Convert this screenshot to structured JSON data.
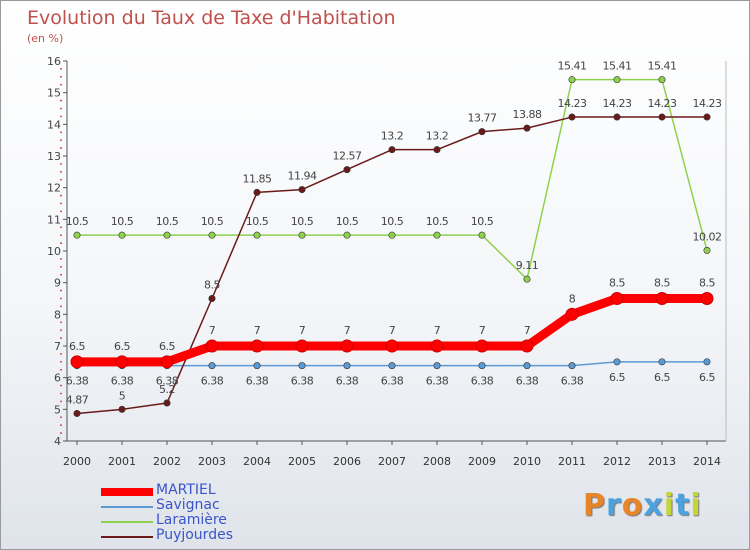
{
  "header": {
    "title": "Evolution du Taux de Taxe d'Habitation",
    "subtitle": "(en %)"
  },
  "logo": {
    "letters": [
      "P",
      "r",
      "o",
      "x",
      "i",
      "t",
      "i"
    ],
    "colors": [
      "#e8842a",
      "#4aa3df",
      "#e8842a",
      "#4aa3df",
      "#c4d63a",
      "#4aa3df",
      "#c4d63a"
    ]
  },
  "chart_data": {
    "type": "line",
    "title": "Evolution du Taux de Taxe d'Habitation",
    "subtitle": "(en %)",
    "xlabel": "",
    "ylabel": "",
    "categories": [
      "2000",
      "2001",
      "2002",
      "2003",
      "2004",
      "2005",
      "2006",
      "2007",
      "2008",
      "2009",
      "2010",
      "2011",
      "2012",
      "2013",
      "2014"
    ],
    "ylim": [
      4,
      16
    ],
    "yticks": [
      4,
      5,
      6,
      7,
      8,
      9,
      10,
      11,
      12,
      13,
      14,
      15,
      16
    ],
    "grid": false,
    "legend_position": "bottom-left",
    "series": [
      {
        "name": "MARTIEL",
        "color": "#ff0000",
        "width": 9,
        "values": [
          6.5,
          6.5,
          6.5,
          7,
          7,
          7,
          7,
          7,
          7,
          7,
          7,
          8,
          8.5,
          8.5,
          8.5
        ],
        "labels": [
          "6.5",
          "6.5",
          "6.5",
          "7",
          "7",
          "7",
          "7",
          "7",
          "7",
          "7",
          "7",
          "8",
          "8.5",
          "8.5",
          "8.5"
        ]
      },
      {
        "name": "Savignac",
        "color": "#5b9bd5",
        "width": 1.5,
        "values": [
          6.38,
          6.38,
          6.38,
          6.38,
          6.38,
          6.38,
          6.38,
          6.38,
          6.38,
          6.38,
          6.38,
          6.38,
          6.5,
          6.5,
          6.5
        ],
        "labels": [
          "6.38",
          "6.38",
          "6.38",
          "6.38",
          "6.38",
          "6.38",
          "6.38",
          "6.38",
          "6.38",
          "6.38",
          "6.38",
          "6.38",
          "6.5",
          "6.5",
          "6.5"
        ]
      },
      {
        "name": "Laramière",
        "color": "#8fd14f",
        "width": 1.5,
        "values": [
          10.5,
          10.5,
          10.5,
          10.5,
          10.5,
          10.5,
          10.5,
          10.5,
          10.5,
          10.5,
          9.11,
          15.41,
          15.41,
          15.41,
          10.02
        ],
        "labels": [
          "10.5",
          "10.5",
          "10.5",
          "10.5",
          "10.5",
          "10.5",
          "10.5",
          "10.5",
          "10.5",
          "10.5",
          "9.11",
          "15.41",
          "15.41",
          "15.41",
          "10.02"
        ]
      },
      {
        "name": "Puyjourdes",
        "color": "#6b1a1a",
        "width": 1.5,
        "values": [
          4.87,
          5,
          5.2,
          8.5,
          11.85,
          11.94,
          12.57,
          13.2,
          13.2,
          13.77,
          13.88,
          14.23,
          14.23,
          14.23,
          14.23
        ],
        "labels": [
          "4.87",
          "5",
          "5.2",
          "8.5",
          "11.85",
          "11.94",
          "12.57",
          "13.2",
          "13.2",
          "13.77",
          "13.88",
          "14.23",
          "14.23",
          "14.23",
          "14.23"
        ]
      }
    ]
  }
}
